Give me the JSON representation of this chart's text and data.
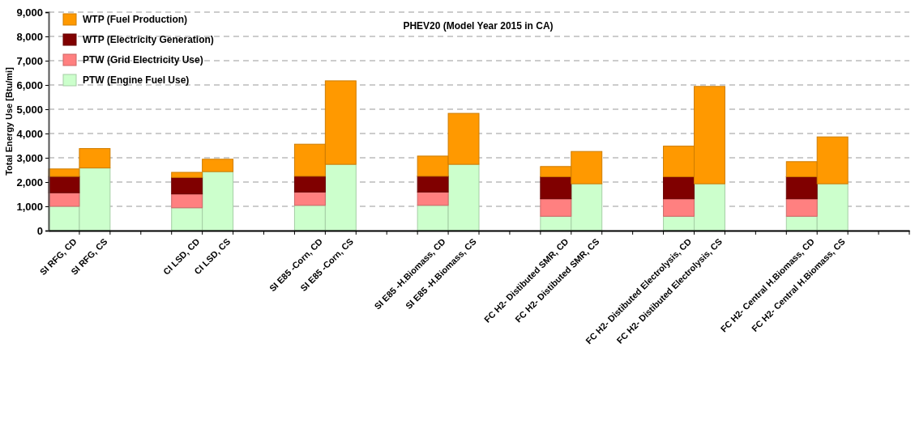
{
  "chart_data": {
    "type": "bar",
    "title": "PHEV20 (Model Year 2015 in CA)",
    "ylabel": "Total Energy Use [Btu/mi]",
    "stacked": true,
    "grid": "y",
    "legend": "top left",
    "categories": [
      "SI RFG, CD",
      "SI RFG, CS",
      null,
      null,
      "CI LSD, CD",
      "CI LSD, CS",
      null,
      null,
      "SI E85 -Corn, CD",
      "SI E85 -Corn, CS",
      null,
      null,
      "SI E85 -H.Biomass, CD",
      "SI E85 -H.Biomass, CS",
      null,
      null,
      "FC H2- Distibuted SMR, CD",
      "FC H2- Distibuted SMR, CS",
      null,
      null,
      "FC H2- Distibuted Electrolysis, CD",
      "FC H2- Distibuted Electrolysis, CS",
      null,
      null,
      "FC H2- Central H.Biomass, CD",
      "FC H2- Central H.Biomass, CS",
      null,
      null
    ],
    "ylim": [
      0,
      9000
    ],
    "yticks": [
      {
        "value": 0,
        "label": "0"
      },
      {
        "value": 1000,
        "label": "1,000"
      },
      {
        "value": 2000,
        "label": "2,000"
      },
      {
        "value": 3000,
        "label": "3,000"
      },
      {
        "value": 4000,
        "label": "4,000"
      },
      {
        "value": 5000,
        "label": "5,000"
      },
      {
        "value": 6000,
        "label": "6,000"
      },
      {
        "value": 7000,
        "label": "7,000"
      },
      {
        "value": 8000,
        "label": "8,000"
      },
      {
        "value": 9000,
        "label": "9,000"
      }
    ],
    "series": [
      {
        "name": "PTW (Engine Fuel Use)",
        "color": "#ccffcc",
        "values": [
          1000,
          2580,
          null,
          null,
          940,
          2430,
          null,
          null,
          1040,
          2730,
          null,
          null,
          1040,
          2730,
          null,
          null,
          590,
          1930,
          null,
          null,
          590,
          1930,
          null,
          null,
          590,
          1930,
          null,
          null
        ]
      },
      {
        "name": "PTW (Grid Electricity Use)",
        "color": "#ff8080",
        "values": [
          560,
          0,
          null,
          null,
          570,
          0,
          null,
          null,
          550,
          0,
          null,
          null,
          550,
          0,
          null,
          null,
          720,
          0,
          null,
          null,
          720,
          0,
          null,
          null,
          720,
          0,
          null,
          null
        ]
      },
      {
        "name": "WTP (Electricity Generation)",
        "color": "#800000",
        "values": [
          670,
          0,
          null,
          null,
          680,
          0,
          null,
          null,
          650,
          0,
          null,
          null,
          650,
          0,
          null,
          null,
          910,
          0,
          null,
          null,
          910,
          0,
          null,
          null,
          910,
          0,
          null,
          null
        ]
      },
      {
        "name": "WTP (Fuel Production)",
        "color": "#ff9900",
        "values": [
          310,
          800,
          null,
          null,
          210,
          510,
          null,
          null,
          1320,
          3440,
          null,
          null,
          830,
          2100,
          null,
          null,
          420,
          1330,
          null,
          null,
          1260,
          4010,
          null,
          null,
          620,
          1930,
          null,
          null
        ]
      }
    ]
  }
}
